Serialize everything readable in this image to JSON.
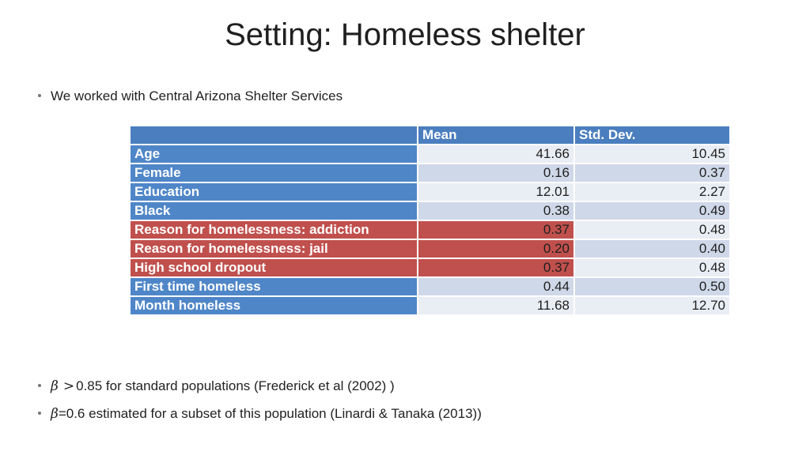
{
  "slide": {
    "title": "Setting: Homeless shelter",
    "bullet1": "We worked with Central Arizona Shelter Services",
    "bullet2": {
      "symbol": "β",
      "operator": ">",
      "text": "0.85 for standard populations (Frederick et al (2002) )"
    },
    "bullet3": {
      "symbol": "β",
      "text": "=0.6 estimated for a subset of this population (Linardi & Tanaka (2013))"
    }
  },
  "table": {
    "headers": [
      "",
      "Mean",
      "Std. Dev."
    ],
    "rows": [
      {
        "label": "Age",
        "mean": "41.66",
        "sd": "10.45",
        "highlight": false
      },
      {
        "label": "Female",
        "mean": "0.16",
        "sd": "0.37",
        "highlight": false
      },
      {
        "label": "Education",
        "mean": "12.01",
        "sd": "2.27",
        "highlight": false
      },
      {
        "label": "Black",
        "mean": "0.38",
        "sd": "0.49",
        "highlight": false
      },
      {
        "label": "Reason for homelessness: addiction",
        "mean": "0.37",
        "sd": "0.48",
        "highlight": true
      },
      {
        "label": "Reason for homelessness: jail",
        "mean": "0.20",
        "sd": "0.40",
        "highlight": true
      },
      {
        "label": "High school dropout",
        "mean": "0.37",
        "sd": "0.48",
        "highlight": true
      },
      {
        "label": "First time homeless",
        "mean": "0.44",
        "sd": "0.50",
        "highlight": false
      },
      {
        "label": "Month homeless",
        "mean": "11.68",
        "sd": "12.70",
        "highlight": false
      }
    ]
  },
  "colors": {
    "header": "#4a7ebf",
    "label": "#4f86c8",
    "highlight": "#c0504d"
  }
}
